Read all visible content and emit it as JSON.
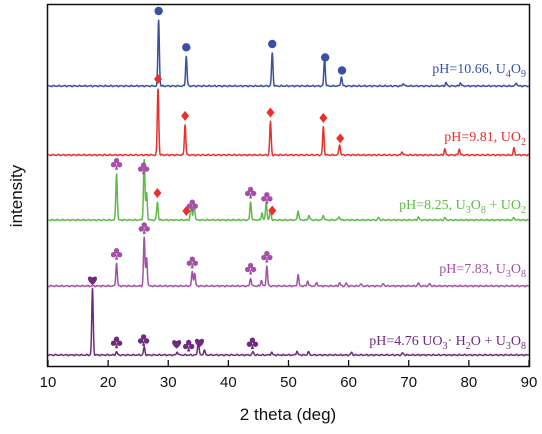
{
  "chart_data": {
    "type": "line",
    "xlabel": "2 theta (deg)",
    "ylabel": "intensity",
    "xlim": [
      10,
      90
    ],
    "xticks": [
      10,
      20,
      30,
      40,
      50,
      60,
      70,
      80,
      90
    ],
    "grid": false,
    "series": [
      {
        "label": [
          "pH=10.66, U",
          "4",
          "O",
          "9",
          ""
        ],
        "color": "#3a4fa6",
        "peaks": [
          [
            28.4,
            1.0
          ],
          [
            33.0,
            0.45
          ],
          [
            47.3,
            0.5
          ],
          [
            56.0,
            0.42
          ],
          [
            58.8,
            0.14
          ],
          [
            69.1,
            0.04
          ],
          [
            76.2,
            0.05
          ],
          [
            78.6,
            0.05
          ],
          [
            87.9,
            0.05
          ]
        ],
        "markers": [
          {
            "x": 28.4,
            "symbol": "circle"
          },
          {
            "x": 33.0,
            "symbol": "circle"
          },
          {
            "x": 47.3,
            "symbol": "circle"
          },
          {
            "x": 56.1,
            "symbol": "circle"
          },
          {
            "x": 58.9,
            "symbol": "circle"
          }
        ]
      },
      {
        "label": [
          "pH=9.81, UO",
          "2",
          "",
          "",
          ""
        ],
        "color": "#e8302c",
        "peaks": [
          [
            28.3,
            1.0
          ],
          [
            32.8,
            0.45
          ],
          [
            47.0,
            0.5
          ],
          [
            55.8,
            0.42
          ],
          [
            58.5,
            0.16
          ],
          [
            68.9,
            0.05
          ],
          [
            76.0,
            0.09
          ],
          [
            78.4,
            0.09
          ],
          [
            87.5,
            0.1
          ]
        ],
        "markers": [
          {
            "x": 28.3,
            "symbol": "diamond"
          },
          {
            "x": 32.8,
            "symbol": "diamond"
          },
          {
            "x": 47.0,
            "symbol": "diamond"
          },
          {
            "x": 55.8,
            "symbol": "diamond"
          },
          {
            "x": 58.6,
            "symbol": "diamond"
          }
        ]
      },
      {
        "label": [
          "pH=8.25, U",
          "3",
          "O",
          "8",
          " + UO",
          "2"
        ],
        "color": "#5dbb46",
        "peaks": [
          [
            21.4,
            0.78
          ],
          [
            26.0,
            1.0
          ],
          [
            26.4,
            0.45
          ],
          [
            28.2,
            0.3
          ],
          [
            33.8,
            0.3
          ],
          [
            34.3,
            0.3
          ],
          [
            43.7,
            0.3
          ],
          [
            45.6,
            0.12
          ],
          [
            46.3,
            0.3
          ],
          [
            47.0,
            0.18
          ],
          [
            51.6,
            0.16
          ],
          [
            53.4,
            0.08
          ],
          [
            55.8,
            0.08
          ],
          [
            58.4,
            0.06
          ],
          [
            65.0,
            0.04
          ],
          [
            71.6,
            0.05
          ],
          [
            76.0,
            0.04
          ],
          [
            87.5,
            0.04
          ]
        ],
        "markers": [
          {
            "x": 21.4,
            "symbol": "club"
          },
          {
            "x": 25.9,
            "symbol": "club"
          },
          {
            "x": 28.2,
            "symbol": "diamond"
          },
          {
            "x": 33.0,
            "symbol": "diamond"
          },
          {
            "x": 34.0,
            "symbol": "club"
          },
          {
            "x": 43.7,
            "symbol": "club"
          },
          {
            "x": 46.4,
            "symbol": "club"
          },
          {
            "x": 47.3,
            "symbol": "diamond"
          }
        ]
      },
      {
        "label": [
          "pH=7.83, U",
          "3",
          "O",
          "8",
          ""
        ],
        "color": "#a550a8",
        "peaks": [
          [
            21.4,
            0.4
          ],
          [
            26.0,
            0.85
          ],
          [
            26.4,
            0.5
          ],
          [
            34.0,
            0.25
          ],
          [
            34.4,
            0.22
          ],
          [
            43.7,
            0.14
          ],
          [
            45.5,
            0.1
          ],
          [
            46.4,
            0.35
          ],
          [
            51.6,
            0.2
          ],
          [
            53.2,
            0.09
          ],
          [
            54.7,
            0.06
          ],
          [
            58.5,
            0.06
          ],
          [
            59.6,
            0.05
          ],
          [
            62.0,
            0.04
          ],
          [
            65.8,
            0.04
          ],
          [
            71.6,
            0.05
          ],
          [
            73.5,
            0.04
          ]
        ],
        "markers": [
          {
            "x": 21.4,
            "symbol": "club"
          },
          {
            "x": 26.0,
            "symbol": "club"
          },
          {
            "x": 34.0,
            "symbol": "club"
          },
          {
            "x": 43.7,
            "symbol": "club"
          },
          {
            "x": 46.4,
            "symbol": "club"
          }
        ]
      },
      {
        "label": [
          "pH=4.76 UO",
          "3",
          "· H",
          "2",
          "O + U",
          "3",
          "O",
          "8"
        ],
        "color": "#6f2a80",
        "peaks": [
          [
            17.4,
            1.0
          ],
          [
            21.4,
            0.05
          ],
          [
            26.0,
            0.12
          ],
          [
            31.5,
            0.05
          ],
          [
            35.0,
            0.22
          ],
          [
            36.0,
            0.08
          ],
          [
            44.1,
            0.05
          ],
          [
            47.2,
            0.04
          ],
          [
            51.4,
            0.06
          ],
          [
            53.3,
            0.05
          ],
          [
            60.5,
            0.04
          ],
          [
            69.0,
            0.03
          ]
        ],
        "markers": [
          {
            "x": 17.4,
            "symbol": "heart"
          },
          {
            "x": 21.4,
            "symbol": "club"
          },
          {
            "x": 25.9,
            "symbol": "club"
          },
          {
            "x": 31.4,
            "symbol": "heart"
          },
          {
            "x": 33.4,
            "symbol": "club"
          },
          {
            "x": 35.2,
            "symbol": "heart"
          },
          {
            "x": 44.0,
            "symbol": "club"
          }
        ]
      }
    ]
  }
}
